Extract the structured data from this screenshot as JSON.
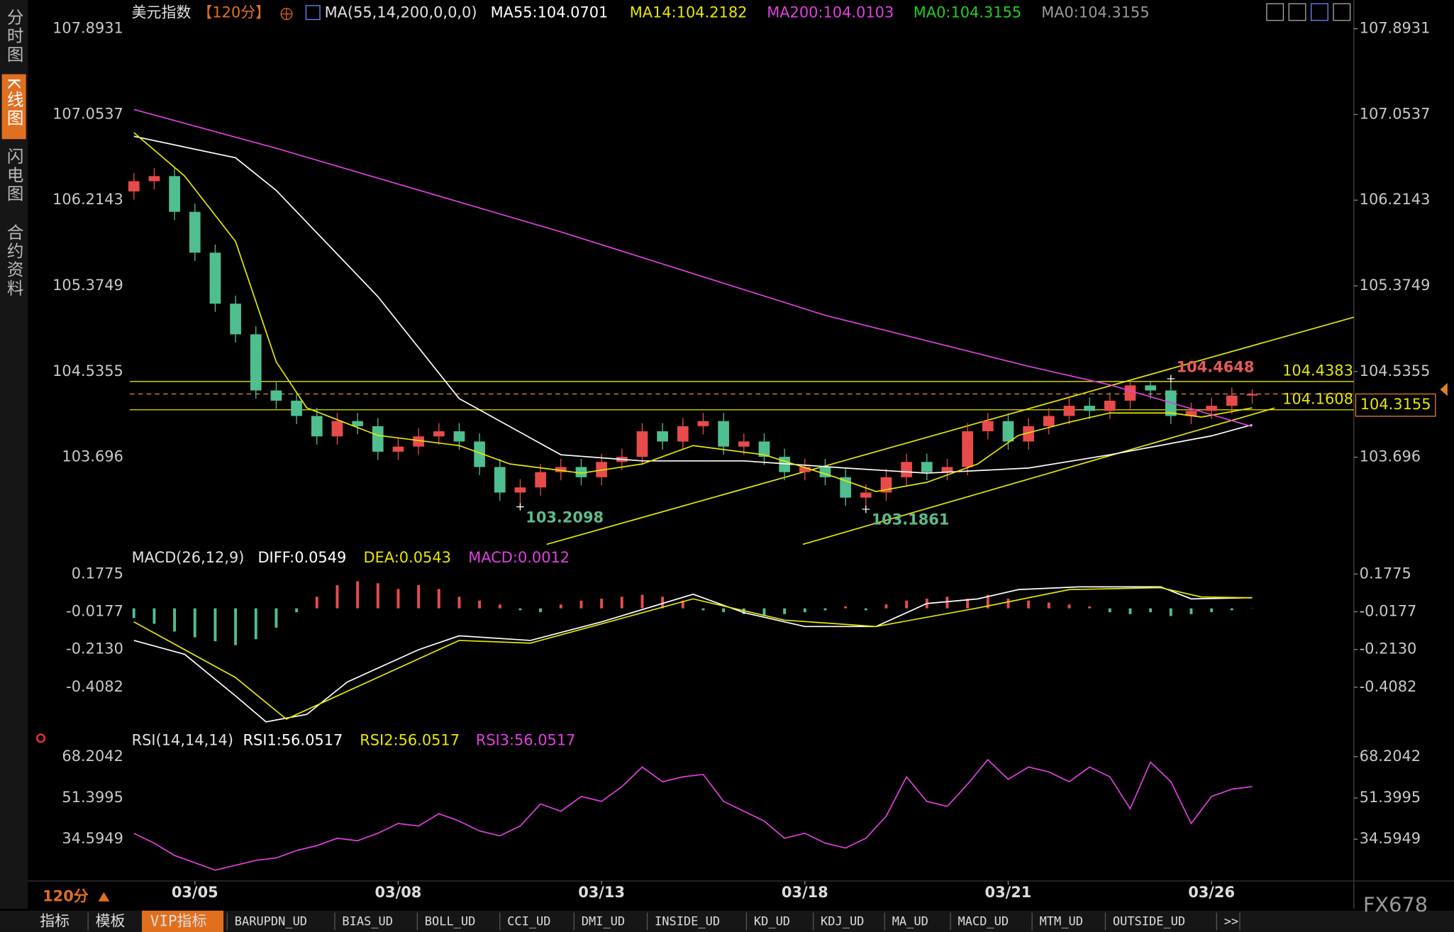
{
  "sidebar": [
    "分时图",
    "K线图",
    "闪电图",
    "合约资料"
  ],
  "chart_data": [
    {
      "type": "candlestick",
      "title": "美元指数",
      "period": "【120分】",
      "indicator": "MA(55,14,200,0,0,0)",
      "xlim": [
        -0.2,
        60
      ],
      "ylim": [
        102.815,
        107.948
      ],
      "yticks": [
        107.8931,
        107.0537,
        106.2143,
        105.3749,
        104.5355,
        103.696
      ],
      "xticks": [
        {
          "value": 3,
          "label": "03/05"
        },
        {
          "value": 13,
          "label": "03/08"
        },
        {
          "value": 23,
          "label": "03/13"
        },
        {
          "value": 33,
          "label": "03/18"
        },
        {
          "value": 43,
          "label": "03/21"
        },
        {
          "value": 53,
          "label": "03/26"
        }
      ],
      "up_color": "#e84b4b",
      "down_color": "#4fbf8f",
      "candles": {
        "open": [
          106.3,
          106.4,
          106.45,
          106.1,
          105.7,
          105.2,
          104.9,
          104.35,
          104.25,
          104.1,
          103.9,
          104.05,
          104.0,
          103.75,
          103.8,
          103.9,
          103.95,
          103.85,
          103.6,
          103.35,
          103.4,
          103.55,
          103.6,
          103.5,
          103.65,
          103.7,
          103.95,
          103.85,
          104.0,
          104.05,
          103.8,
          103.85,
          103.7,
          103.55,
          103.6,
          103.5,
          103.3,
          103.35,
          103.5,
          103.65,
          103.55,
          103.6,
          103.95,
          104.05,
          103.85,
          104.0,
          104.1,
          104.2,
          104.15,
          104.25,
          104.4,
          104.35,
          104.1,
          104.15,
          104.2,
          104.3
        ],
        "high": [
          106.48,
          106.53,
          106.53,
          106.18,
          105.78,
          105.28,
          104.98,
          104.43,
          104.33,
          104.18,
          104.13,
          104.13,
          104.08,
          103.88,
          103.98,
          104.03,
          104.03,
          103.93,
          103.68,
          103.48,
          103.63,
          103.68,
          103.68,
          103.73,
          103.78,
          104.03,
          104.03,
          104.08,
          104.13,
          104.13,
          103.93,
          103.93,
          103.78,
          103.68,
          103.68,
          103.58,
          103.43,
          103.58,
          103.73,
          103.73,
          103.68,
          104.03,
          104.13,
          104.13,
          104.08,
          104.18,
          104.28,
          104.28,
          104.33,
          104.44,
          104.44,
          104.4648,
          104.23,
          104.28,
          104.38,
          104.36
        ],
        "low": [
          106.22,
          106.32,
          106.02,
          105.62,
          105.12,
          104.82,
          104.27,
          104.17,
          104.02,
          103.82,
          103.82,
          103.92,
          103.67,
          103.67,
          103.72,
          103.82,
          103.77,
          103.52,
          103.27,
          103.2098,
          103.32,
          103.47,
          103.42,
          103.42,
          103.57,
          103.62,
          103.77,
          103.77,
          103.92,
          103.72,
          103.72,
          103.62,
          103.47,
          103.47,
          103.42,
          103.22,
          103.1861,
          103.27,
          103.42,
          103.47,
          103.47,
          103.52,
          103.87,
          103.77,
          103.77,
          103.92,
          104.02,
          104.07,
          104.07,
          104.17,
          104.27,
          104.02,
          104.02,
          104.07,
          104.12,
          104.22
        ],
        "close": [
          106.4,
          106.45,
          106.1,
          105.7,
          105.2,
          104.9,
          104.35,
          104.25,
          104.1,
          103.9,
          104.05,
          104.0,
          103.75,
          103.8,
          103.9,
          103.95,
          103.85,
          103.6,
          103.35,
          103.4,
          103.55,
          103.6,
          103.5,
          103.65,
          103.7,
          103.95,
          103.85,
          104.0,
          104.05,
          103.8,
          103.85,
          103.7,
          103.55,
          103.6,
          103.5,
          103.3,
          103.35,
          103.5,
          103.65,
          103.55,
          103.6,
          103.95,
          104.05,
          103.85,
          104.0,
          104.1,
          104.2,
          104.15,
          104.25,
          104.4,
          104.35,
          104.1,
          104.15,
          104.2,
          104.3,
          104.3155
        ]
      },
      "series": [
        {
          "name": "MA55:104.0701",
          "color": "#ffffff",
          "x": [
            0,
            5,
            7,
            12,
            16,
            21,
            25,
            30,
            35,
            39,
            44,
            48,
            53,
            55
          ],
          "values": [
            106.84,
            106.63,
            106.31,
            105.27,
            104.27,
            103.72,
            103.66,
            103.66,
            103.59,
            103.54,
            103.59,
            103.72,
            103.905,
            104.014
          ]
        },
        {
          "name": "MA14:104.2182",
          "color": "#e6e600",
          "x": [
            0,
            2.5,
            5,
            7,
            8.5,
            12,
            16,
            18.5,
            22,
            25,
            27.5,
            31,
            34.5,
            36.5,
            39,
            41.5,
            43.5,
            46,
            48,
            51,
            52.5,
            55
          ],
          "values": [
            106.876,
            106.45,
            105.81,
            104.63,
            104.18,
            103.91,
            103.81,
            103.63,
            103.54,
            103.63,
            103.81,
            103.72,
            103.5,
            103.36,
            103.45,
            103.63,
            103.91,
            104.04,
            104.13,
            104.13,
            104.09,
            104.18
          ]
        },
        {
          "name": "MA200:104.0103",
          "color": "#e040e0",
          "x": [
            0,
            7,
            21,
            34,
            44,
            48,
            55
          ],
          "values": [
            107.103,
            106.722,
            105.904,
            105.086,
            104.587,
            104.405,
            103.996
          ]
        },
        {
          "name": "MA0:104.3155",
          "color": "#22cc22"
        },
        {
          "name": "MA0:104.3155",
          "color": "#999999"
        }
      ],
      "hlines": [
        {
          "value": 104.4383,
          "color": "#e6e600",
          "dashed": false,
          "tag": "inline"
        },
        {
          "value": 104.3155,
          "color": "#d08a30",
          "dashed": true,
          "tag": "axis"
        },
        {
          "value": 104.1608,
          "color": "#e6e600",
          "dashed": false,
          "tag": "inline"
        }
      ],
      "trend_lines": [
        {
          "color": "#e6e600",
          "x": [
            20.3,
            60
          ],
          "values": [
            102.842,
            105.068
          ]
        },
        {
          "color": "#e6e600",
          "x": [
            32.9,
            56.1
          ],
          "values": [
            102.842,
            104.178
          ]
        }
      ],
      "annotations": [
        {
          "x": 19,
          "value": 103.2098,
          "color": "#5fba8c",
          "side": "low"
        },
        {
          "x": 36,
          "value": 103.1861,
          "color": "#5fba8c",
          "side": "low"
        },
        {
          "x": 51,
          "value": 104.4648,
          "color": "#e85a5a",
          "side": "high"
        }
      ]
    },
    {
      "type": "macd",
      "title": "MACD(26,12,9)",
      "xlim": [
        -0.2,
        60
      ],
      "ylim": [
        -0.6188,
        0.211
      ],
      "yticks": [
        0.1775,
        -0.0177,
        {
          "value": -0.213,
          "label": "-0.2130"
        },
        -0.4082
      ],
      "series": [
        {
          "name": "DIFF:0.0549",
          "color": "#ffffff",
          "x": [
            0,
            2.5,
            5,
            6.5,
            8.5,
            10.5,
            14,
            16,
            19.5,
            23,
            27.5,
            30,
            33,
            36.5,
            39,
            41.5,
            43.5,
            46.5,
            50.5,
            52,
            55
          ],
          "values": [
            -0.166,
            -0.238,
            -0.453,
            -0.587,
            -0.549,
            -0.381,
            -0.214,
            -0.142,
            -0.166,
            -0.07,
            0.073,
            -0.022,
            -0.094,
            -0.094,
            0.025,
            0.049,
            0.097,
            0.111,
            0.111,
            0.049,
            0.0549
          ]
        },
        {
          "name": "DEA:0.0543",
          "color": "#e6e600",
          "x": [
            0,
            5,
            7.5,
            10.5,
            16,
            19.5,
            23,
            27.5,
            32,
            36.5,
            41.5,
            46,
            50.5,
            52.5,
            55
          ],
          "values": [
            -0.07,
            -0.358,
            -0.573,
            -0.429,
            -0.166,
            -0.18,
            -0.08,
            0.049,
            -0.061,
            -0.094,
            0.002,
            0.097,
            0.107,
            0.059,
            0.0543
          ]
        }
      ],
      "histogram": {
        "name": "MACD:0.0012",
        "label_color": "#e040e0",
        "up_color": "#e84b4b",
        "down_color": "#4fbf8f",
        "values": [
          -0.05,
          -0.08,
          -0.12,
          -0.15,
          -0.17,
          -0.19,
          -0.16,
          -0.1,
          -0.02,
          0.06,
          0.12,
          0.14,
          0.13,
          0.1,
          0.12,
          0.1,
          0.06,
          0.04,
          0.02,
          -0.01,
          -0.02,
          0.02,
          0.04,
          0.05,
          0.06,
          0.07,
          0.06,
          0.04,
          -0.01,
          -0.02,
          -0.03,
          -0.04,
          -0.03,
          -0.02,
          -0.01,
          0.01,
          -0.01,
          0.02,
          0.04,
          0.05,
          0.06,
          0.05,
          0.07,
          0.05,
          0.04,
          0.03,
          0.02,
          0.01,
          -0.02,
          -0.03,
          -0.02,
          -0.04,
          -0.03,
          -0.02,
          -0.01,
          0.0012
        ]
      }
    },
    {
      "type": "line",
      "title": "RSI(14,14,14)",
      "xlim": [
        -0.2,
        60
      ],
      "ylim": [
        17.6,
        71.225
      ],
      "yticks": [
        68.2042,
        51.3995,
        34.5949
      ],
      "series": [
        {
          "name": "RSI1:56.0517",
          "color": "#ffffff"
        },
        {
          "name": "RSI2:56.0517",
          "color": "#e6e600"
        },
        {
          "name": "RSI3:56.0517",
          "color": "#e040e0",
          "values": [
            37,
            33,
            28,
            25,
            22,
            24,
            26,
            27,
            30,
            32,
            35,
            34,
            37,
            41,
            40,
            45,
            42,
            38,
            36,
            40,
            49,
            46,
            52,
            50,
            56,
            64,
            58,
            60,
            61,
            50,
            46,
            42,
            35,
            37,
            33,
            31,
            35,
            44,
            60,
            50,
            48,
            57,
            67,
            59,
            64,
            62,
            58,
            64,
            60,
            47,
            66,
            58,
            41,
            52,
            55,
            56.0517
          ]
        }
      ]
    }
  ],
  "footer": {
    "period": "120分",
    "watermark": "FX678"
  },
  "toolbar": [
    "指标",
    "模板",
    "VIP指标",
    "BARUPDN_UD",
    "BIAS_UD",
    "BOLL_UD",
    "CCI_UD",
    "DMI_UD",
    "INSIDE_UD",
    "KD_UD",
    "KDJ_UD",
    "MA_UD",
    "MACD_UD",
    "MTM_UD",
    "OUTSIDE_UD",
    ">>"
  ]
}
